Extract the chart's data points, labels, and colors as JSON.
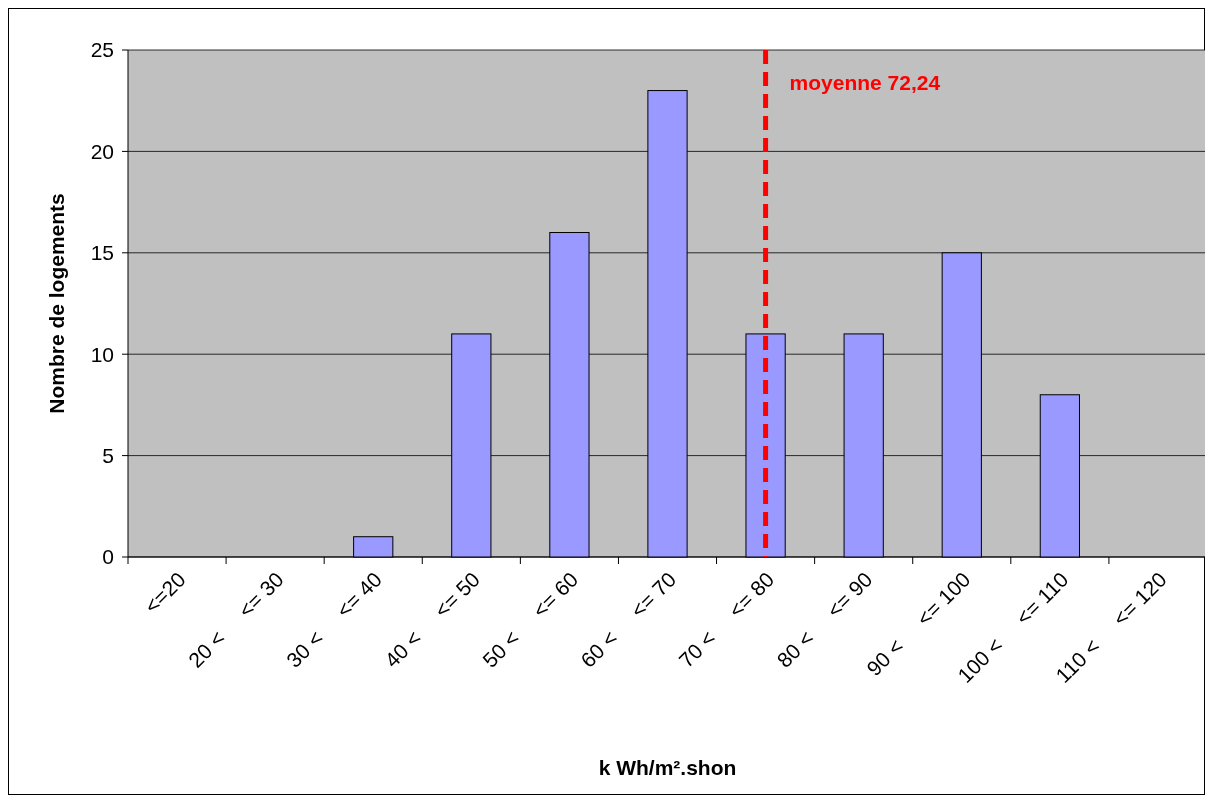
{
  "chart_data": {
    "type": "bar",
    "xlabel": "k Wh/m².shon",
    "ylabel": "Nombre de logements",
    "categories": [
      "<=20",
      "20 <     <= 30",
      "30 <     <= 40",
      "40 <     <= 50",
      "50 <     <= 60",
      "60 <     <= 70",
      "70 <     <= 80",
      "80 <     <= 90",
      "90 <     <= 100",
      "100 <     <= 110",
      "110 <     <= 120"
    ],
    "values": [
      0,
      0,
      1,
      11,
      16,
      23,
      11,
      11,
      15,
      8,
      0
    ],
    "color": "#9999ff",
    "ylim": [
      0,
      25
    ],
    "yticks": [
      0,
      5,
      10,
      15,
      20,
      25
    ],
    "grid": "y",
    "ref_lines": [
      {
        "axis": "x",
        "value": "70 <     <= 80",
        "label": "moyenne 72,24",
        "color": "#ff0000",
        "line_style": "dashed"
      }
    ]
  }
}
